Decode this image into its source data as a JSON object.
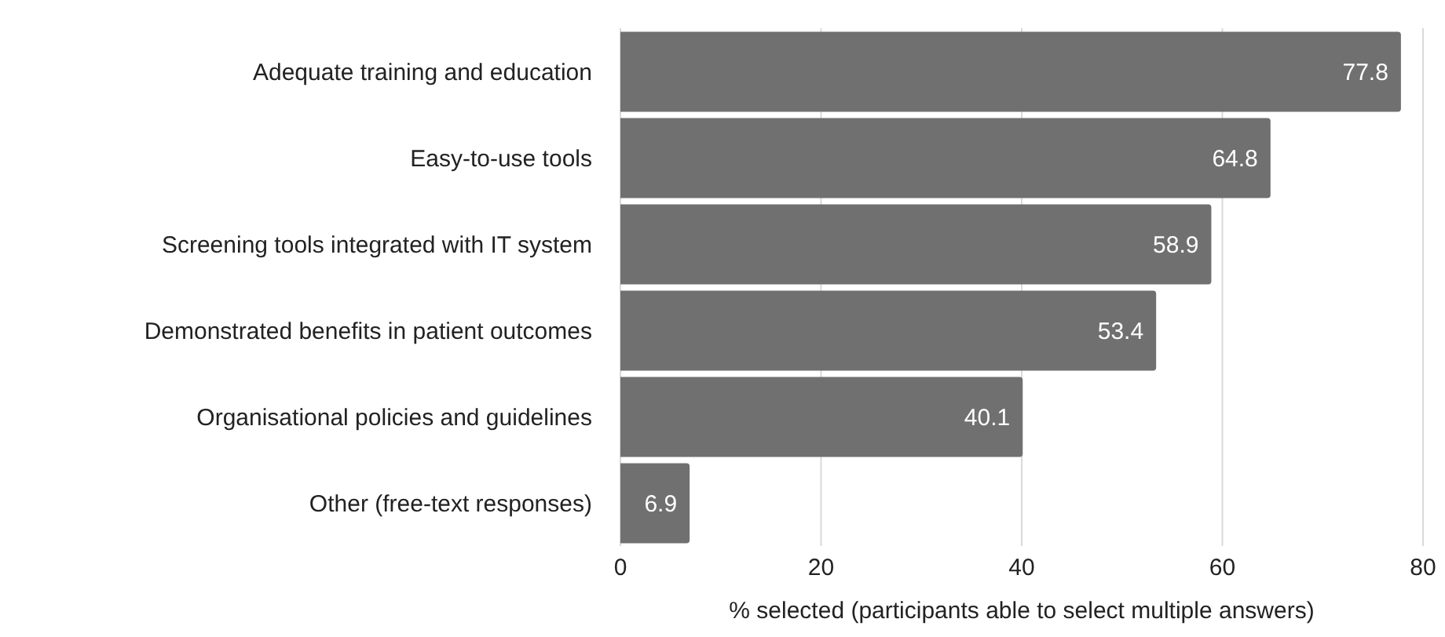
{
  "chart_data": {
    "type": "bar",
    "orientation": "horizontal",
    "categories": [
      "Adequate training and education",
      "Easy-to-use tools",
      "Screening tools integrated with IT system",
      "Demonstrated benefits in patient outcomes",
      "Organisational policies and guidelines",
      "Other (free-text responses)"
    ],
    "values": [
      77.8,
      64.8,
      58.9,
      53.4,
      40.1,
      6.9
    ],
    "color": "#707070",
    "xlabel": "% selected (participants able to select multiple answers)",
    "xlim": [
      0,
      80
    ],
    "xticks": [
      0,
      20,
      40,
      60,
      80
    ],
    "grid": "x",
    "data_labels": true,
    "legend": false
  }
}
